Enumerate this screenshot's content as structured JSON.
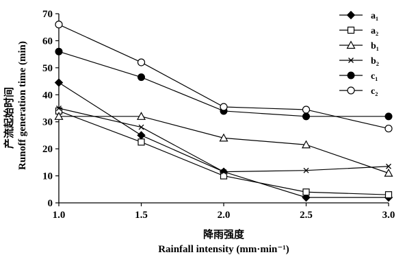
{
  "chart_data": {
    "type": "line",
    "x": [
      1.0,
      1.5,
      2.0,
      2.5,
      3.0
    ],
    "x_ticks": [
      "1.0",
      "1.5",
      "2.0",
      "2.5",
      "3.0"
    ],
    "y_ticks": [
      "0",
      "10",
      "20",
      "30",
      "40",
      "50",
      "60",
      "70"
    ],
    "xlim": [
      1.0,
      3.0
    ],
    "ylim": [
      0,
      70
    ],
    "xlabel_cn": "降雨强度",
    "xlabel_en": "Rainfall intensity (mm·min⁻¹)",
    "ylabel_cn": "产流起始时间",
    "ylabel_en": "Runoff generation time (min)",
    "grid": false,
    "legend_position": "top-right",
    "series": [
      {
        "name": "a₁",
        "marker": "diamond-filled",
        "values": [
          44.5,
          25,
          11.5,
          2,
          2
        ]
      },
      {
        "name": "a₂",
        "marker": "square-open",
        "values": [
          34,
          22.5,
          10,
          4,
          3
        ]
      },
      {
        "name": "b₁",
        "marker": "triangle-open",
        "values": [
          32,
          32,
          24,
          21.5,
          11
        ]
      },
      {
        "name": "b₂",
        "marker": "cross",
        "values": [
          35,
          28,
          11.5,
          12,
          13.5
        ]
      },
      {
        "name": "c₁",
        "marker": "circle-filled",
        "values": [
          56,
          46.5,
          34,
          32,
          32
        ]
      },
      {
        "name": "c₂",
        "marker": "circle-open",
        "values": [
          66,
          52,
          35.5,
          34.5,
          27.5
        ]
      }
    ]
  }
}
